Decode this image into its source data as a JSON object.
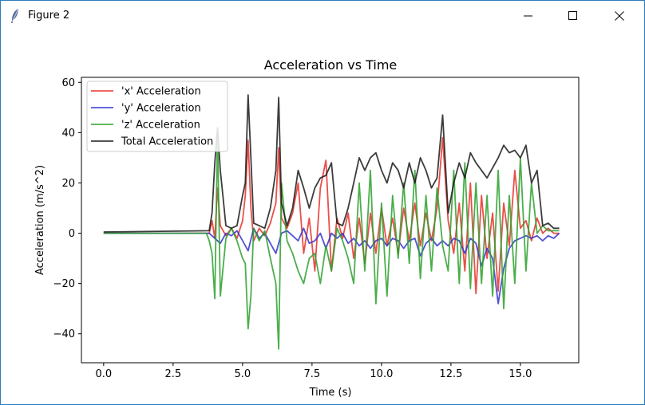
{
  "window": {
    "title": "Figure 2",
    "icons": [
      "feather-icon",
      "minimize-icon",
      "maximize-icon",
      "close-icon"
    ]
  },
  "chart_data": {
    "type": "line",
    "title": "Acceleration vs Time",
    "xlabel": "Time (s)",
    "ylabel": "Acceleration (m/s^2)",
    "xlim": [
      -0.8,
      17.1
    ],
    "ylim": [
      -51.5,
      62
    ],
    "xticks": [
      0.0,
      2.5,
      5.0,
      7.5,
      10.0,
      12.5,
      15.0
    ],
    "xtick_labels": [
      "0.0",
      "2.5",
      "5.0",
      "7.5",
      "10.0",
      "12.5",
      "15.0"
    ],
    "yticks": [
      -40,
      -20,
      0,
      20,
      40,
      60
    ],
    "ytick_labels": [
      "−40",
      "−20",
      "0",
      "20",
      "40",
      "60"
    ],
    "grid": false,
    "legend_position": "upper-left",
    "series": [
      {
        "name": "'x' Acceleration",
        "color": "#e8302a",
        "x": [
          0.0,
          3.8,
          3.9,
          4.0,
          4.1,
          4.2,
          4.4,
          4.6,
          4.8,
          5.0,
          5.1,
          5.2,
          5.3,
          5.4,
          5.6,
          5.8,
          6.0,
          6.2,
          6.3,
          6.4,
          6.6,
          6.8,
          7.0,
          7.2,
          7.4,
          7.6,
          7.8,
          8.0,
          8.2,
          8.4,
          8.6,
          8.8,
          9.0,
          9.2,
          9.4,
          9.6,
          9.8,
          10.0,
          10.2,
          10.4,
          10.6,
          10.8,
          11.0,
          11.2,
          11.4,
          11.6,
          11.8,
          12.0,
          12.2,
          12.4,
          12.6,
          12.8,
          13.0,
          13.2,
          13.4,
          13.6,
          13.8,
          14.0,
          14.2,
          14.4,
          14.6,
          14.8,
          15.0,
          15.2,
          15.4,
          15.6,
          15.8,
          16.0,
          16.2,
          16.4
        ],
        "y": [
          0,
          0,
          5,
          -2,
          18,
          3,
          -1,
          2,
          -2,
          5,
          15,
          37,
          10,
          -3,
          2,
          -1,
          4,
          12,
          34,
          6,
          2,
          8,
          20,
          -8,
          6,
          -15,
          18,
          29,
          -15,
          6,
          -2,
          8,
          -10,
          6,
          -12,
          8,
          -8,
          10,
          -5,
          6,
          -8,
          10,
          -3,
          12,
          -5,
          8,
          -3,
          10,
          38,
          5,
          -8,
          12,
          -15,
          20,
          -24,
          15,
          -10,
          8,
          -23,
          12,
          -5,
          25,
          2,
          5,
          -3,
          6,
          0,
          2,
          0,
          0
        ]
      },
      {
        "name": "'y' Acceleration",
        "color": "#3333cc",
        "x": [
          0.0,
          3.8,
          4.0,
          4.2,
          4.4,
          4.6,
          4.8,
          5.0,
          5.2,
          5.4,
          5.6,
          5.8,
          6.0,
          6.2,
          6.4,
          6.6,
          6.8,
          7.0,
          7.2,
          7.4,
          7.6,
          7.8,
          8.0,
          8.2,
          8.4,
          8.6,
          8.8,
          9.0,
          9.2,
          9.4,
          9.6,
          9.8,
          10.0,
          10.2,
          10.4,
          10.6,
          10.8,
          11.0,
          11.2,
          11.4,
          11.6,
          11.8,
          12.0,
          12.2,
          12.4,
          12.6,
          12.8,
          13.0,
          13.2,
          13.4,
          13.6,
          13.8,
          14.0,
          14.2,
          14.4,
          14.6,
          14.8,
          15.0,
          15.2,
          15.4,
          15.6,
          15.8,
          16.0,
          16.2,
          16.4
        ],
        "y": [
          0,
          0,
          -2,
          -4,
          0,
          -1,
          1,
          -3,
          -7,
          2,
          -2,
          0,
          -4,
          -8,
          0,
          1,
          -1,
          -3,
          2,
          -4,
          -3,
          0,
          -6,
          0,
          -2,
          0,
          -4,
          -2,
          -5,
          -3,
          -6,
          -3,
          -2,
          -5,
          -2,
          -3,
          -6,
          -3,
          -2,
          -9,
          -4,
          -2,
          -5,
          -3,
          -5,
          -2,
          -3,
          -8,
          -2,
          -4,
          -13,
          -6,
          -10,
          -28,
          -14,
          -6,
          -3,
          -2,
          -1,
          -2,
          -1,
          -3,
          -1,
          -2,
          0
        ]
      },
      {
        "name": "'z' Acceleration",
        "color": "#2ca02c",
        "x": [
          0.0,
          3.7,
          3.8,
          3.9,
          4.0,
          4.1,
          4.2,
          4.4,
          4.6,
          4.8,
          5.0,
          5.1,
          5.2,
          5.3,
          5.4,
          5.6,
          5.8,
          6.0,
          6.2,
          6.3,
          6.4,
          6.6,
          6.8,
          7.0,
          7.2,
          7.4,
          7.6,
          7.8,
          8.0,
          8.2,
          8.4,
          8.6,
          8.8,
          9.0,
          9.2,
          9.4,
          9.6,
          9.8,
          10.0,
          10.2,
          10.4,
          10.6,
          10.8,
          11.0,
          11.2,
          11.4,
          11.6,
          11.8,
          12.0,
          12.2,
          12.4,
          12.6,
          12.8,
          13.0,
          13.2,
          13.4,
          13.6,
          13.8,
          14.0,
          14.2,
          14.4,
          14.6,
          14.8,
          15.0,
          15.2,
          15.4,
          15.6,
          15.8,
          16.0,
          16.2,
          16.4
        ],
        "y": [
          0,
          0,
          -3,
          -8,
          -26,
          40,
          -25,
          -2,
          2,
          -3,
          -10,
          -12,
          -38,
          -25,
          2,
          -3,
          1,
          -10,
          -20,
          -46,
          20,
          -3,
          -8,
          -15,
          -20,
          -10,
          -8,
          -20,
          -5,
          -15,
          2,
          -3,
          -10,
          -20,
          20,
          -15,
          25,
          -28,
          12,
          -25,
          15,
          -10,
          20,
          -12,
          25,
          -18,
          15,
          -15,
          18,
          -5,
          -15,
          25,
          -20,
          28,
          -22,
          20,
          -20,
          15,
          -25,
          25,
          -30,
          15,
          -20,
          30,
          -15,
          20,
          0,
          3,
          1,
          1,
          1
        ]
      },
      {
        "name": "Total Acceleration",
        "color": "#1a1a1a",
        "x": [
          0.0,
          3.8,
          3.9,
          4.0,
          4.1,
          4.2,
          4.4,
          4.6,
          4.8,
          5.0,
          5.1,
          5.2,
          5.3,
          5.4,
          5.6,
          5.8,
          6.0,
          6.2,
          6.3,
          6.4,
          6.6,
          6.8,
          7.0,
          7.2,
          7.4,
          7.6,
          7.8,
          8.0,
          8.2,
          8.4,
          8.6,
          8.8,
          9.0,
          9.2,
          9.4,
          9.6,
          9.8,
          10.0,
          10.2,
          10.4,
          10.6,
          10.8,
          11.0,
          11.2,
          11.4,
          11.6,
          11.8,
          12.0,
          12.2,
          12.4,
          12.6,
          12.8,
          13.0,
          13.2,
          13.4,
          13.6,
          13.8,
          14.0,
          14.2,
          14.4,
          14.6,
          14.8,
          15.0,
          15.2,
          15.4,
          15.6,
          15.8,
          16.0,
          16.2,
          16.4
        ],
        "y": [
          0.5,
          1,
          8,
          28,
          42,
          25,
          3,
          2,
          3,
          15,
          20,
          55,
          30,
          4,
          3,
          2,
          10,
          25,
          54,
          12,
          3,
          10,
          25,
          18,
          10,
          18,
          22,
          23,
          28,
          4,
          3,
          10,
          20,
          30,
          25,
          30,
          32,
          25,
          20,
          28,
          25,
          18,
          28,
          20,
          30,
          25,
          18,
          22,
          47,
          8,
          20,
          28,
          22,
          32,
          28,
          25,
          22,
          26,
          30,
          35,
          32,
          33,
          30,
          35,
          20,
          25,
          3,
          4,
          2,
          2
        ]
      }
    ]
  }
}
